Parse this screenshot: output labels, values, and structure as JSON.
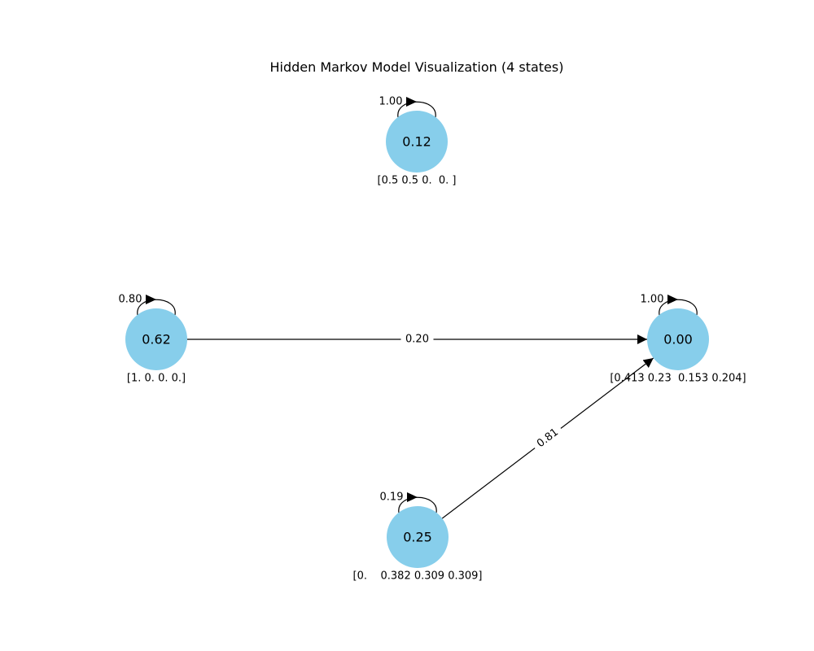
{
  "title": "Hidden Markov Model Visualization (4 states)",
  "colors": {
    "node_fill": "#87CEEB",
    "edge": "#000000",
    "background": "#ffffff"
  },
  "states": [
    {
      "id": "top",
      "label": "0.12",
      "self_prob": "1.00",
      "emission": "[0.5 0.5 0.  0. ]"
    },
    {
      "id": "left",
      "label": "0.62",
      "self_prob": "0.80",
      "emission": "[1. 0. 0. 0.]"
    },
    {
      "id": "right",
      "label": "0.00",
      "self_prob": "1.00",
      "emission": "[0.413 0.23  0.153 0.204]"
    },
    {
      "id": "bottom",
      "label": "0.25",
      "self_prob": "0.19",
      "emission": "[0.    0.382 0.309 0.309]"
    }
  ],
  "transitions": [
    {
      "from": "left",
      "to": "right",
      "prob": "0.20"
    },
    {
      "from": "bottom",
      "to": "right",
      "prob": "0.81"
    }
  ]
}
